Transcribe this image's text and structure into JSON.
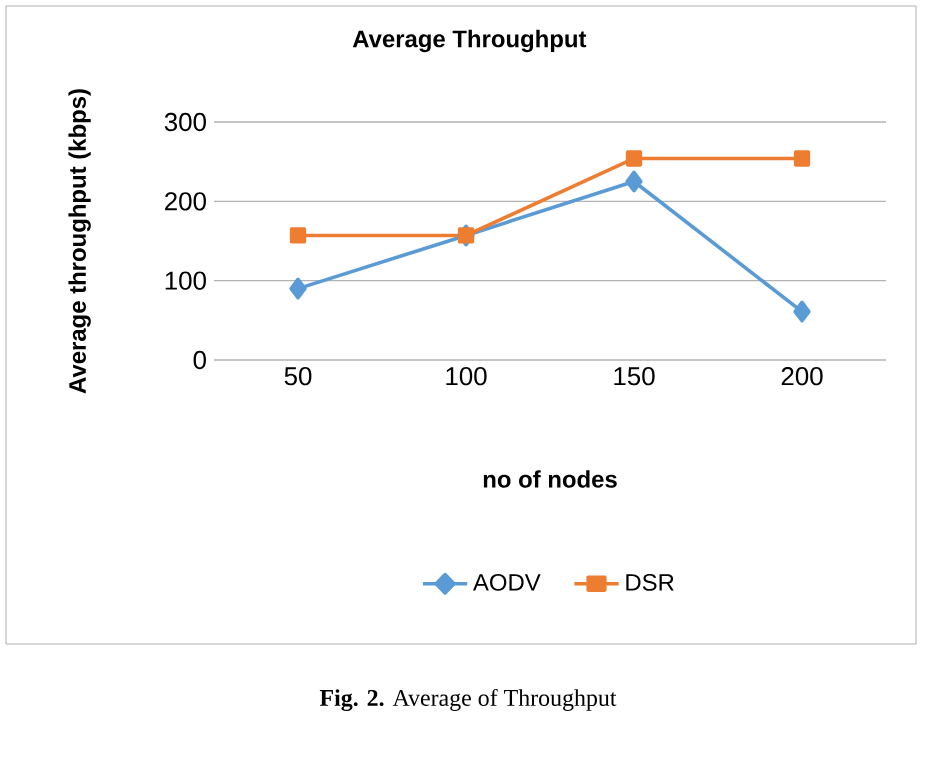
{
  "chart_data": {
    "type": "line",
    "title": "Average Throughput",
    "xlabel": "no of nodes",
    "ylabel": "Average throughput (kbps)",
    "categories": [
      "50",
      "100",
      "150",
      "200"
    ],
    "series": [
      {
        "name": "AODV",
        "color": "#5b9bd5",
        "marker": "diamond",
        "values": [
          90,
          157,
          225,
          61
        ]
      },
      {
        "name": "DSR",
        "color": "#ed7d31",
        "marker": "square",
        "values": [
          157,
          157,
          254,
          254
        ]
      }
    ],
    "ylim": [
      0,
      300
    ],
    "yticks": [
      0,
      100,
      200,
      300
    ],
    "grid": "y",
    "legend": "bottom",
    "annotations": [
      "**Fig. 2.** Average of Throughput"
    ]
  }
}
